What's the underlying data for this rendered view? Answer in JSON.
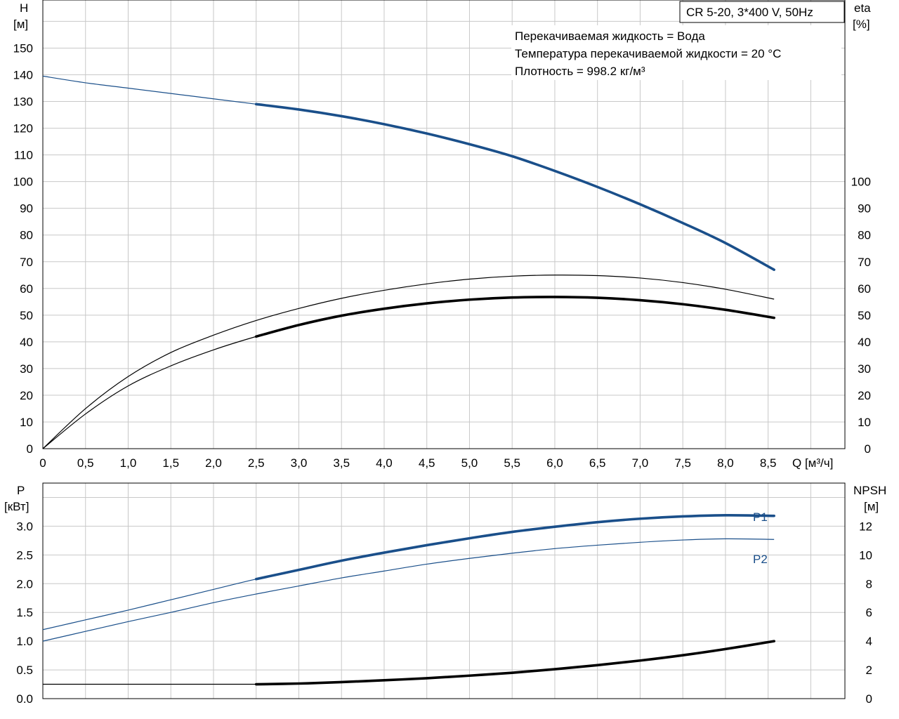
{
  "chart_data": [
    {
      "type": "line",
      "title": "CR 5-20, 3*400 V, 50Hz",
      "info": [
        "Перекачиваемая жидкость = Вода",
        "Температура перекачиваемой жидкости = 20 °C",
        "Плотность = 998.2 кг/м³"
      ],
      "xlabel": "Q [м³/ч]",
      "ylabel_left": [
        "H",
        "[м]"
      ],
      "ylabel_right": [
        "eta",
        "[%]"
      ],
      "xlim": [
        0,
        9.4
      ],
      "ylim_left": [
        0,
        168
      ],
      "ylim_right": [
        0,
        168
      ],
      "x_ticks": [
        "0",
        "0,5",
        "1,0",
        "1,5",
        "2,0",
        "2,5",
        "3,0",
        "3,5",
        "4,0",
        "4,5",
        "5,0",
        "5,5",
        "6,0",
        "6,5",
        "7,0",
        "7,5",
        "8,0",
        "8,5"
      ],
      "y_ticks_left": [
        0,
        10,
        20,
        30,
        40,
        50,
        60,
        70,
        80,
        90,
        100,
        110,
        120,
        130,
        140,
        150
      ],
      "y_ticks_right": [
        0,
        10,
        20,
        30,
        40,
        50,
        60,
        70,
        80,
        90,
        100
      ],
      "grid": true,
      "series": [
        {
          "axis": "left",
          "color": "#1a4f8a",
          "x": [
            0,
            0.5,
            1.0,
            1.5,
            2.0,
            2.5,
            3.0,
            3.5,
            4.0,
            4.5,
            5.0,
            5.5,
            6.0,
            6.5,
            7.0,
            7.5,
            8.0,
            8.57
          ],
          "y": [
            139.5,
            137,
            135,
            133,
            131,
            129,
            127,
            124.5,
            121.5,
            118,
            114,
            109.5,
            104,
            98,
            91.5,
            84.5,
            77,
            67
          ],
          "bold_from": 2.5
        },
        {
          "axis": "right",
          "color": "#000000",
          "x": [
            0,
            0.5,
            1.0,
            1.5,
            2.0,
            2.5,
            3.0,
            3.5,
            4.0,
            4.5,
            5.0,
            5.5,
            6.0,
            6.5,
            7.0,
            7.5,
            8.0,
            8.57
          ],
          "y": [
            0,
            15,
            27,
            36,
            42.5,
            48,
            52.5,
            56.3,
            59.3,
            61.7,
            63.5,
            64.6,
            65,
            64.8,
            63.9,
            62.2,
            59.7,
            56
          ],
          "bold_from": 999
        },
        {
          "axis": "right",
          "color": "#000000",
          "x": [
            0,
            0.5,
            1.0,
            1.5,
            2.0,
            2.5,
            3.0,
            3.5,
            4.0,
            4.5,
            5.0,
            5.5,
            6.0,
            6.5,
            7.0,
            7.5,
            8.0,
            8.57
          ],
          "y": [
            0,
            13,
            23.5,
            31,
            37,
            42,
            46.3,
            49.8,
            52.4,
            54.4,
            55.8,
            56.6,
            56.8,
            56.5,
            55.6,
            54.1,
            52,
            49
          ],
          "bold_from": 2.5
        }
      ]
    },
    {
      "type": "line",
      "ylabel_left": [
        "P",
        "[кВт]"
      ],
      "ylabel_right": [
        "NPSH",
        "[м]"
      ],
      "xlim": [
        0,
        9.4
      ],
      "ylim_left": [
        0,
        3.75
      ],
      "ylim_right": [
        0,
        15
      ],
      "y_ticks_left": [
        "0.0",
        "0.5",
        "1.0",
        "1.5",
        "2.0",
        "2.5",
        "3.0"
      ],
      "y_ticks_right": [
        0,
        2,
        4,
        6,
        8,
        10,
        12
      ],
      "grid": true,
      "series": [
        {
          "name": "P1",
          "axis": "left",
          "color": "#1a4f8a",
          "x": [
            0,
            0.5,
            1.0,
            1.5,
            2.0,
            2.5,
            3.0,
            3.5,
            4.0,
            4.5,
            5.0,
            5.5,
            6.0,
            6.5,
            7.0,
            7.5,
            8.0,
            8.57
          ],
          "y": [
            1.2,
            1.37,
            1.54,
            1.72,
            1.9,
            2.08,
            2.24,
            2.4,
            2.54,
            2.67,
            2.79,
            2.9,
            2.99,
            3.07,
            3.13,
            3.17,
            3.19,
            3.18
          ],
          "bold_from": 2.5
        },
        {
          "name": "P2",
          "axis": "left",
          "color": "#1a4f8a",
          "x": [
            0,
            0.5,
            1.0,
            1.5,
            2.0,
            2.5,
            3.0,
            3.5,
            4.0,
            4.5,
            5.0,
            5.5,
            6.0,
            6.5,
            7.0,
            7.5,
            8.0,
            8.57
          ],
          "y": [
            1.0,
            1.17,
            1.34,
            1.5,
            1.67,
            1.82,
            1.96,
            2.1,
            2.22,
            2.34,
            2.44,
            2.53,
            2.61,
            2.67,
            2.72,
            2.76,
            2.78,
            2.77
          ],
          "bold_from": 999
        },
        {
          "axis": "right",
          "color": "#000000",
          "x": [
            0,
            0.5,
            1.0,
            1.5,
            2.0,
            2.5,
            3.0,
            3.5,
            4.0,
            4.5,
            5.0,
            5.5,
            6.0,
            6.5,
            7.0,
            7.5,
            8.0,
            8.57
          ],
          "y": [
            1.0,
            1.0,
            1.0,
            1.0,
            1.0,
            1.0,
            1.05,
            1.15,
            1.28,
            1.42,
            1.6,
            1.8,
            2.05,
            2.33,
            2.65,
            3.02,
            3.45,
            4.0
          ],
          "bold_from": 2.5
        }
      ]
    }
  ]
}
